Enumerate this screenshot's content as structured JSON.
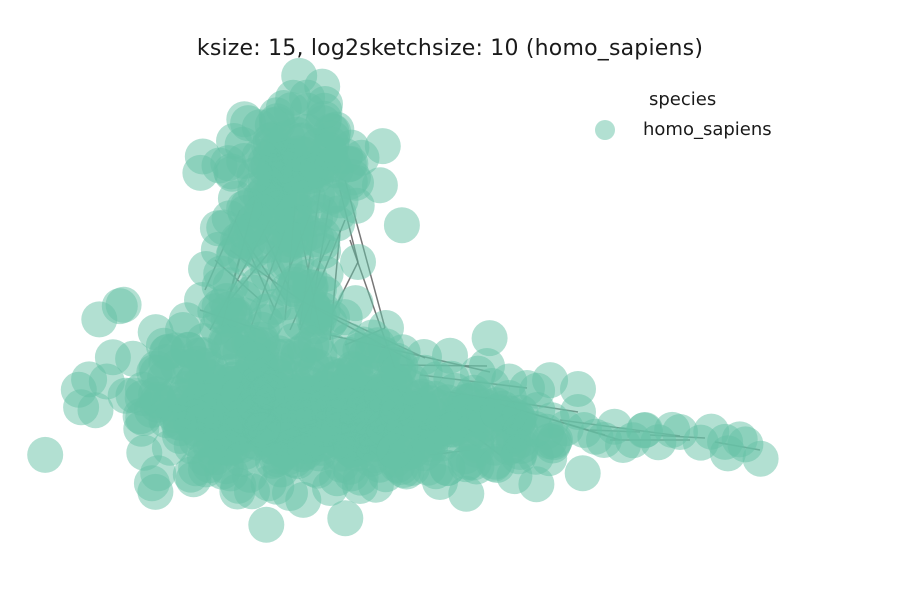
{
  "title": "ksize: 15, log2sketchsize: 10 (homo_sapiens)",
  "legend": {
    "title": "species",
    "entries": [
      {
        "label": "homo_sapiens",
        "color": "#66c2a5"
      }
    ]
  },
  "graph": {
    "node_color": "#66c2a5",
    "node_alpha": 0.5,
    "edge_color": "#555555"
  }
}
